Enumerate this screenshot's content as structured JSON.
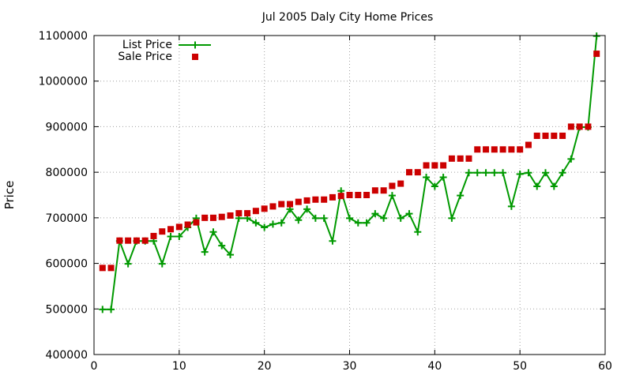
{
  "chart_data": {
    "type": "line",
    "title": "Jul 2005 Daly City Home Prices",
    "xlabel": "",
    "ylabel": "Price",
    "xlim": [
      0,
      60
    ],
    "ylim": [
      400000,
      1100000
    ],
    "xticks": [
      0,
      10,
      20,
      30,
      40,
      50,
      60
    ],
    "yticks": [
      400000,
      500000,
      600000,
      700000,
      800000,
      900000,
      1000000,
      1100000
    ],
    "grid": true,
    "legend_position": "top-left",
    "x": [
      1,
      2,
      3,
      4,
      5,
      6,
      7,
      8,
      9,
      10,
      11,
      12,
      13,
      14,
      15,
      16,
      17,
      18,
      19,
      20,
      21,
      22,
      23,
      24,
      25,
      26,
      27,
      28,
      29,
      30,
      31,
      32,
      33,
      34,
      35,
      36,
      37,
      38,
      39,
      40,
      41,
      42,
      43,
      44,
      45,
      46,
      47,
      48,
      49,
      50,
      51,
      52,
      53,
      54,
      55,
      56,
      57,
      58,
      59
    ],
    "series": [
      {
        "name": "List Price",
        "style": "line-cross",
        "color": "#009900",
        "values": [
          499000,
          499000,
          649000,
          599000,
          649000,
          649000,
          649000,
          599000,
          659000,
          659000,
          679000,
          699000,
          625000,
          669000,
          639000,
          619000,
          699000,
          699000,
          689000,
          679000,
          686000,
          689000,
          719000,
          695000,
          719000,
          699000,
          699000,
          649000,
          759000,
          699000,
          689000,
          689000,
          709000,
          699000,
          749000,
          699000,
          709000,
          669000,
          789000,
          769000,
          789000,
          699000,
          749000,
          799000,
          799000,
          799000,
          799000,
          799000,
          725000,
          796000,
          799000,
          769000,
          799000,
          769000,
          799000,
          829000,
          899000,
          899000,
          1099000
        ]
      },
      {
        "name": "Sale Price",
        "style": "square",
        "color": "#cc0000",
        "values": [
          590000,
          590000,
          650000,
          650000,
          650000,
          650000,
          660000,
          670000,
          675000,
          680000,
          685000,
          690000,
          700000,
          700000,
          702000,
          705000,
          710000,
          710000,
          715000,
          720000,
          725000,
          730000,
          730000,
          735000,
          738000,
          740000,
          740000,
          745000,
          748000,
          750000,
          750000,
          750000,
          760000,
          760000,
          770000,
          775000,
          800000,
          800000,
          815000,
          815000,
          815000,
          830000,
          830000,
          830000,
          850000,
          850000,
          850000,
          850000,
          850000,
          850000,
          860000,
          880000,
          880000,
          880000,
          880000,
          900000,
          900000,
          900000,
          1060000
        ]
      }
    ]
  }
}
